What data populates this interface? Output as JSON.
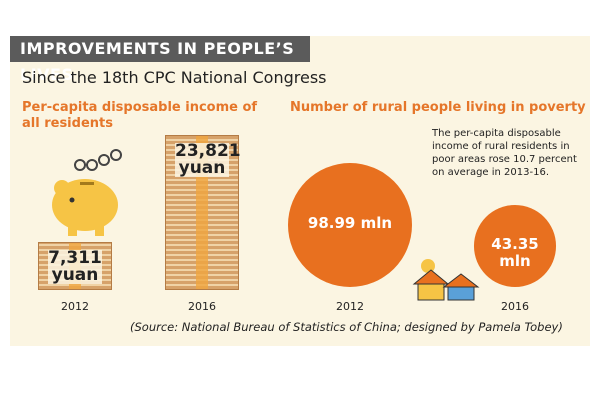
{
  "title": "IMPROVEMENTS IN PEOPLE’S LIVES",
  "subtitle": "Since the 18th CPC National Congress",
  "source": "(Source: National Bureau of Statistics of China; designed by Pamela Tobey)",
  "chart_data": [
    {
      "type": "bar",
      "title": "Per-capita disposable income of all residents",
      "categories": [
        "2012",
        "2016"
      ],
      "values": [
        7311,
        23821
      ],
      "value_labels": [
        "7,311 yuan",
        "23,821 yuan"
      ],
      "color": "#d6a26a"
    },
    {
      "type": "bubble",
      "title": "Number of rural people living in poverty",
      "categories": [
        "2012",
        "2016"
      ],
      "values": [
        98.99,
        43.35
      ],
      "value_labels": [
        "98.99 mln",
        "43.35 mln"
      ],
      "color": "#e8701f",
      "annotation": "The per-capita disposable income of rural residents in poor areas rose 10.7 percent on average in 2013-16."
    }
  ]
}
